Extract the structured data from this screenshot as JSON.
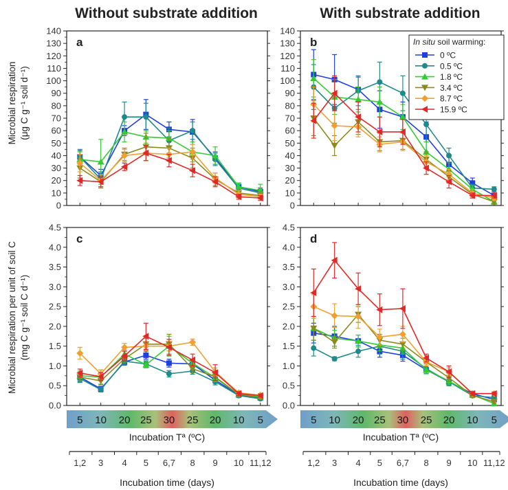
{
  "column_titles": [
    "Without substrate addition",
    "With substrate addition"
  ],
  "y_labels": {
    "top": [
      "Microbial respiration",
      "(μg C g⁻¹ soil d⁻¹)"
    ],
    "bottom": [
      "Microbial respiration per unit of soil C",
      "(mg C g⁻¹ soil C d⁻¹)"
    ]
  },
  "incubation_temp_label": "Incubation Tª (ºC)",
  "incubation_temps": [
    "5",
    "10",
    "20",
    "25",
    "30",
    "25",
    "20",
    "10",
    "5"
  ],
  "incubation_time_label": "Incubation time (days)",
  "time_ticks": [
    "1,2",
    "3",
    "4",
    "5",
    "6,7",
    "8",
    "9",
    "10",
    "11,12"
  ],
  "legend": {
    "title_italic": "In situ",
    "title_rest": " soil warming:",
    "entries": [
      "0 ºC",
      "0.5 ºC",
      "1.8 ºC",
      "3.4 ºC",
      "8.7 ºC",
      "15.9 ºC"
    ]
  },
  "series_colors": [
    "#1f3fe0",
    "#1e8a8a",
    "#33cc33",
    "#8c8a1f",
    "#f0a030",
    "#e02828"
  ],
  "series_markers": [
    "square",
    "circle",
    "triangle-up",
    "triangle-down",
    "diamond",
    "triangle-left"
  ],
  "chart_data": [
    {
      "id": "a",
      "type": "line",
      "title": "a",
      "ylim": [
        0,
        140
      ],
      "yticks": [
        0,
        10,
        20,
        30,
        40,
        50,
        60,
        70,
        80,
        90,
        100,
        110,
        120,
        130,
        140
      ],
      "categories": [
        "1,2",
        "3",
        "4",
        "5",
        "6,7",
        "8",
        "9",
        "10",
        "11,12"
      ],
      "series": [
        {
          "name": "0 ºC",
          "values": [
            39,
            24,
            60,
            73,
            61,
            59,
            38,
            15,
            11
          ],
          "errors": [
            5,
            5,
            4,
            12,
            6,
            10,
            5,
            3,
            3
          ]
        },
        {
          "name": "0.5 ºC",
          "values": [
            39,
            21,
            71,
            71,
            52,
            60,
            37,
            14,
            10
          ],
          "errors": [
            6,
            6,
            12,
            11,
            10,
            7,
            5,
            3,
            3
          ]
        },
        {
          "name": "1.8 ºC",
          "values": [
            37,
            35,
            59,
            55,
            54,
            43,
            40,
            15,
            12
          ],
          "errors": [
            6,
            18,
            8,
            5,
            6,
            8,
            7,
            3,
            5
          ]
        },
        {
          "name": "3.4 ºC",
          "values": [
            30,
            19,
            41,
            47,
            46,
            38,
            21,
            10,
            8
          ],
          "errors": [
            8,
            5,
            5,
            11,
            8,
            8,
            5,
            3,
            3
          ]
        },
        {
          "name": "8.7 ºC",
          "values": [
            34,
            20,
            40,
            42,
            41,
            43,
            22,
            9,
            7
          ],
          "errors": [
            7,
            5,
            5,
            6,
            5,
            6,
            4,
            3,
            2
          ]
        },
        {
          "name": "15.9 ºC",
          "values": [
            20,
            19,
            31,
            42,
            36,
            28,
            19,
            7,
            6
          ],
          "errors": [
            4,
            4,
            3,
            6,
            5,
            5,
            4,
            2,
            2
          ]
        }
      ]
    },
    {
      "id": "b",
      "type": "line",
      "title": "b",
      "ylim": [
        0,
        140
      ],
      "yticks": [
        0,
        10,
        20,
        30,
        40,
        50,
        60,
        70,
        80,
        90,
        100,
        110,
        120,
        130,
        140
      ],
      "categories": [
        "1,2",
        "3",
        "4",
        "5",
        "6,7",
        "8",
        "9",
        "10",
        "11,12"
      ],
      "series": [
        {
          "name": "0 ºC",
          "values": [
            105,
            101,
            93,
            77,
            71,
            55,
            33,
            18,
            8
          ],
          "errors": [
            20,
            20,
            10,
            15,
            12,
            12,
            8,
            4,
            3
          ]
        },
        {
          "name": "0.5 ºC",
          "values": [
            95,
            78,
            92,
            99,
            90,
            65,
            40,
            14,
            13
          ],
          "errors": [
            18,
            12,
            12,
            16,
            14,
            14,
            6,
            3,
            2
          ]
        },
        {
          "name": "1.8 ºC",
          "values": [
            102,
            87,
            85,
            83,
            71,
            43,
            29,
            13,
            3
          ],
          "errors": [
            15,
            14,
            10,
            12,
            10,
            8,
            6,
            3,
            2
          ]
        },
        {
          "name": "3.4 ºC",
          "values": [
            70,
            48,
            67,
            51,
            52,
            37,
            23,
            9,
            3
          ],
          "errors": [
            14,
            8,
            10,
            7,
            7,
            6,
            5,
            3,
            2
          ]
        },
        {
          "name": "8.7 ºC",
          "values": [
            81,
            64,
            63,
            49,
            51,
            35,
            25,
            10,
            6
          ],
          "errors": [
            14,
            12,
            8,
            6,
            7,
            5,
            4,
            3,
            2
          ]
        },
        {
          "name": "15.9 ºC",
          "values": [
            68,
            90,
            71,
            59,
            59,
            30,
            19,
            8,
            8
          ],
          "errors": [
            14,
            14,
            12,
            12,
            10,
            5,
            5,
            2,
            2
          ]
        }
      ]
    },
    {
      "id": "c",
      "type": "line",
      "title": "c",
      "ylim": [
        0,
        4.5
      ],
      "yticks": [
        "0.0",
        "0.5",
        "1.0",
        "1.5",
        "2.0",
        "2.5",
        "3.0",
        "3.5",
        "4.0",
        "4.5"
      ],
      "categories": [
        "1,2",
        "3",
        "4",
        "5",
        "6,7",
        "8",
        "9",
        "10",
        "11,12"
      ],
      "series": [
        {
          "name": "0 ºC",
          "values": [
            0.72,
            0.42,
            1.1,
            1.27,
            1.07,
            1.05,
            0.64,
            0.27,
            0.19
          ],
          "errors": [
            0.1,
            0.06,
            0.08,
            0.1,
            0.1,
            0.1,
            0.08,
            0.05,
            0.04
          ]
        },
        {
          "name": "0.5 ºC",
          "values": [
            0.68,
            0.4,
            1.12,
            1.05,
            0.8,
            0.87,
            0.6,
            0.25,
            0.17
          ],
          "errors": [
            0.1,
            0.06,
            0.08,
            0.08,
            0.08,
            0.08,
            0.08,
            0.05,
            0.04
          ]
        },
        {
          "name": "1.8 ºC",
          "values": [
            0.75,
            0.72,
            1.3,
            1.03,
            1.5,
            1.07,
            0.7,
            0.28,
            0.22
          ],
          "errors": [
            0.12,
            0.18,
            0.1,
            0.08,
            0.25,
            0.1,
            0.1,
            0.05,
            0.04
          ]
        },
        {
          "name": "3.4 ºC",
          "values": [
            0.72,
            0.62,
            1.18,
            1.55,
            1.55,
            0.93,
            0.72,
            0.28,
            0.2
          ],
          "errors": [
            0.12,
            0.1,
            0.1,
            0.15,
            0.25,
            0.1,
            0.1,
            0.05,
            0.04
          ]
        },
        {
          "name": "8.7 ºC",
          "values": [
            1.32,
            0.8,
            1.47,
            1.5,
            1.5,
            1.6,
            0.85,
            0.32,
            0.26
          ],
          "errors": [
            0.15,
            0.1,
            0.1,
            0.12,
            0.12,
            0.08,
            0.1,
            0.05,
            0.04
          ]
        },
        {
          "name": "15.9 ºC",
          "values": [
            0.82,
            0.73,
            1.25,
            1.75,
            1.47,
            1.15,
            0.83,
            0.3,
            0.25
          ],
          "errors": [
            0.1,
            0.1,
            0.12,
            0.33,
            0.2,
            0.15,
            0.2,
            0.05,
            0.04
          ]
        }
      ]
    },
    {
      "id": "d",
      "type": "line",
      "title": "d",
      "ylim": [
        0,
        4.5
      ],
      "yticks": [
        "0.0",
        "0.5",
        "1.0",
        "1.5",
        "2.0",
        "2.5",
        "3.0",
        "3.5",
        "4.0",
        "4.5"
      ],
      "categories": [
        "1,2",
        "3",
        "4",
        "5",
        "6,7",
        "8",
        "9",
        "10",
        "11,12"
      ],
      "series": [
        {
          "name": "0 ºC",
          "values": [
            1.83,
            1.75,
            1.63,
            1.37,
            1.27,
            0.9,
            0.6,
            0.3,
            0.15
          ],
          "errors": [
            0.25,
            0.25,
            0.15,
            0.15,
            0.15,
            0.1,
            0.1,
            0.05,
            0.04
          ]
        },
        {
          "name": "0.5 ºC",
          "values": [
            1.45,
            1.18,
            1.37,
            1.5,
            1.37,
            0.93,
            0.6,
            0.25,
            0.2
          ],
          "errors": [
            0.2,
            0.05,
            0.15,
            0.2,
            0.2,
            0.12,
            0.1,
            0.05,
            0.04
          ]
        },
        {
          "name": "1.8 ºC",
          "values": [
            1.95,
            1.7,
            1.63,
            1.53,
            1.45,
            0.9,
            0.62,
            0.27,
            0.05
          ],
          "errors": [
            0.3,
            0.2,
            0.15,
            0.15,
            0.15,
            0.1,
            0.1,
            0.05,
            0.04
          ]
        },
        {
          "name": "3.4 ºC",
          "values": [
            1.95,
            1.6,
            2.3,
            1.65,
            1.55,
            1.1,
            0.7,
            0.25,
            0.1
          ],
          "errors": [
            0.3,
            0.15,
            0.2,
            0.15,
            0.15,
            0.1,
            0.1,
            0.05,
            0.04
          ]
        },
        {
          "name": "8.7 ºC",
          "values": [
            2.5,
            2.27,
            2.25,
            1.73,
            1.8,
            1.1,
            0.85,
            0.3,
            0.3
          ],
          "errors": [
            0.3,
            0.3,
            0.3,
            0.2,
            0.2,
            0.1,
            0.1,
            0.05,
            0.04
          ]
        },
        {
          "name": "15.9 ºC",
          "values": [
            2.85,
            3.67,
            2.95,
            2.42,
            2.45,
            1.2,
            0.85,
            0.3,
            0.3
          ],
          "errors": [
            0.6,
            0.45,
            0.4,
            0.4,
            0.5,
            0.1,
            0.15,
            0.05,
            0.04
          ]
        }
      ]
    }
  ]
}
